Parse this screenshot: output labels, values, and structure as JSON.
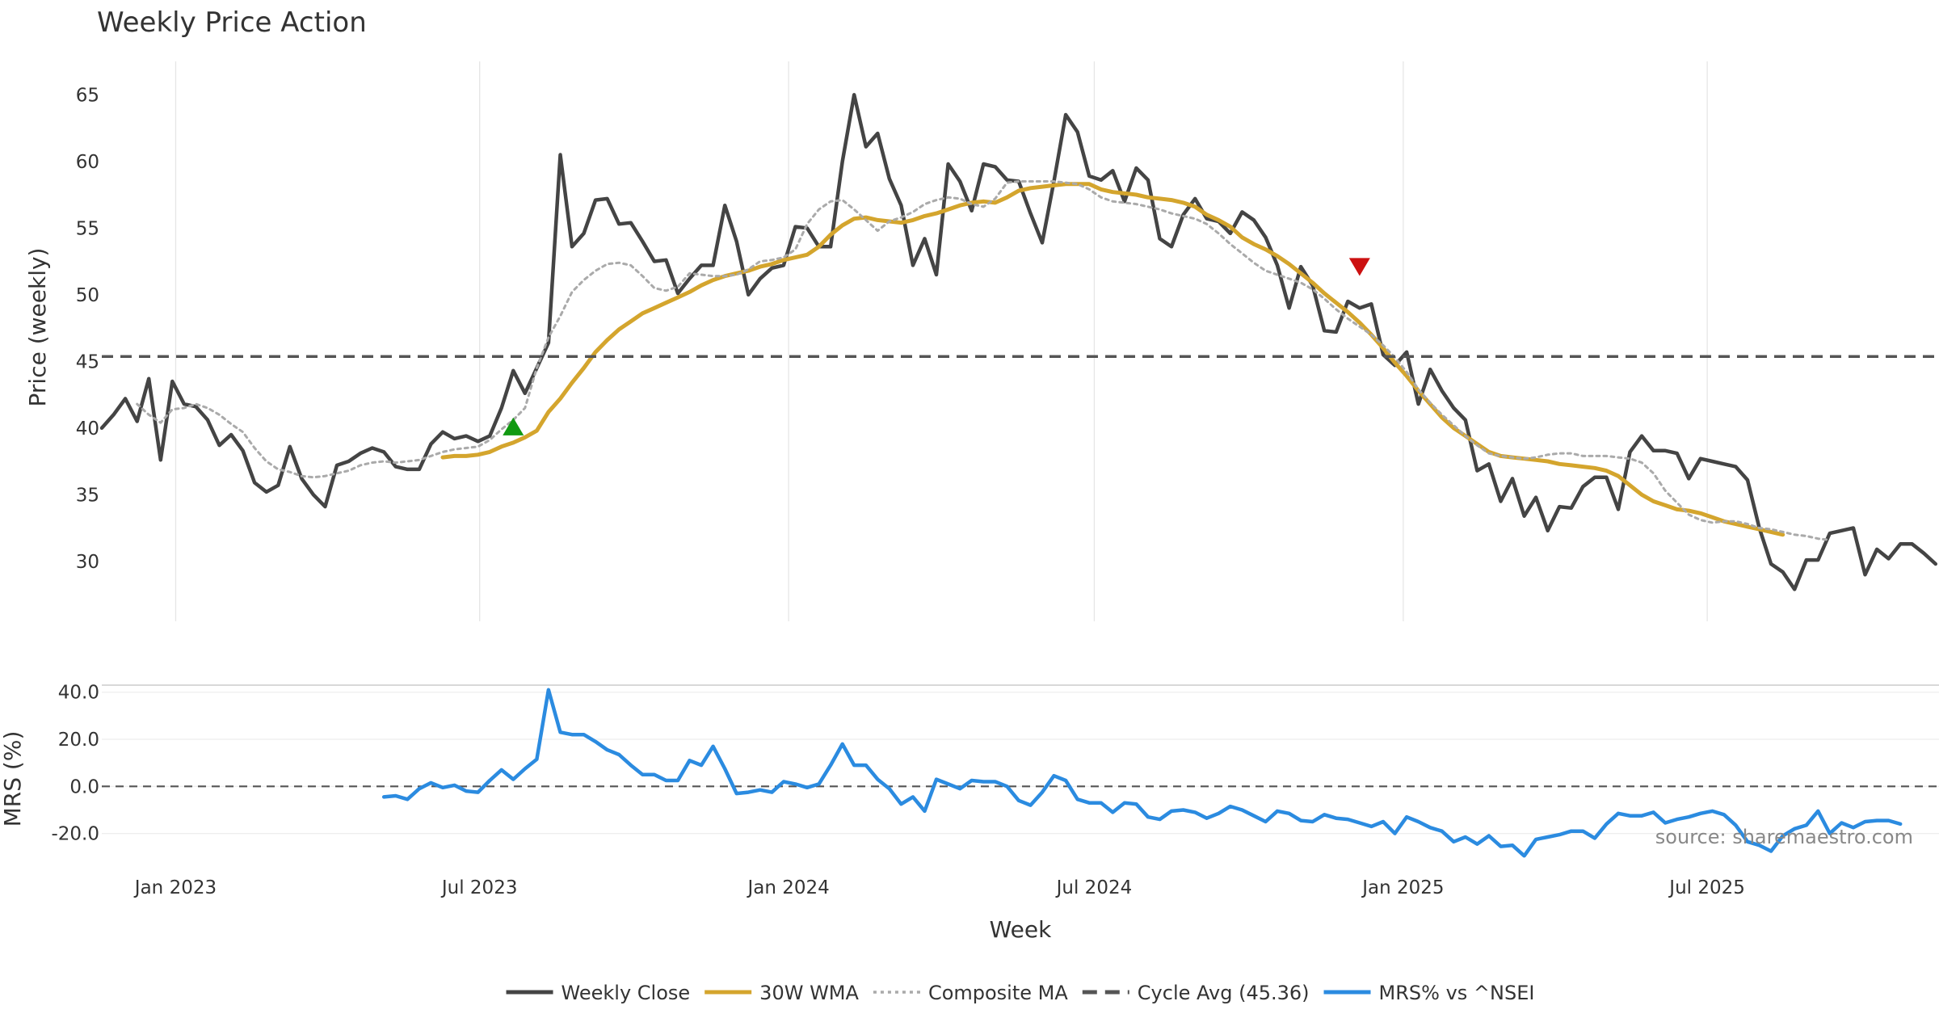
{
  "chart_data": [
    {
      "panel": "price",
      "type": "line",
      "title": "Weekly Price Action",
      "ylabel": "Price (weekly)",
      "ylim": [
        25.5,
        67.5
      ],
      "yticks": [
        30,
        35,
        40,
        45,
        50,
        55,
        60,
        65
      ],
      "x_start": "2022-11-18",
      "x_step_days": 7,
      "grid": "vertical",
      "series": [
        {
          "name": "Weekly Close",
          "color": "#444444",
          "style": "solid",
          "start_index": 0,
          "values": [
            40.0,
            41.0,
            42.2,
            40.5,
            43.7,
            37.6,
            43.5,
            41.8,
            41.6,
            40.6,
            38.7,
            39.5,
            38.3,
            35.9,
            35.2,
            35.7,
            38.6,
            36.2,
            35.0,
            34.1,
            37.2,
            37.5,
            38.1,
            38.5,
            38.2,
            37.1,
            36.9,
            36.9,
            38.8,
            39.7,
            39.2,
            39.4,
            39.0,
            39.4,
            41.5,
            44.3,
            42.6,
            44.5,
            46.4,
            60.5,
            53.6,
            54.6,
            57.1,
            57.2,
            55.3,
            55.4,
            54.0,
            52.5,
            52.6,
            50.1,
            51.2,
            52.2,
            52.2,
            56.7,
            54.0,
            50.0,
            51.2,
            52.0,
            52.2,
            55.1,
            55.0,
            53.6,
            53.6,
            60.0,
            65.0,
            61.1,
            62.1,
            58.7,
            56.7,
            52.2,
            54.2,
            51.5,
            59.8,
            58.5,
            56.3,
            59.8,
            59.6,
            58.6,
            58.5,
            56.1,
            53.9,
            58.5,
            63.5,
            62.2,
            58.9,
            58.6,
            59.3,
            57.0,
            59.5,
            58.6,
            54.2,
            53.6,
            56.0,
            57.2,
            55.7,
            55.5,
            54.6,
            56.2,
            55.6,
            54.3,
            52.2,
            49.0,
            52.1,
            50.7,
            47.3,
            47.2,
            49.5,
            49.0,
            49.3,
            45.5,
            44.7,
            45.7,
            41.8,
            44.4,
            42.8,
            41.5,
            40.6,
            36.8,
            37.3,
            34.5,
            36.2,
            33.4,
            34.8,
            32.3,
            34.1,
            34.0,
            35.6,
            36.3,
            36.3,
            33.9,
            38.2,
            39.4,
            38.3,
            38.3,
            38.1,
            36.2,
            37.7,
            37.5,
            37.3,
            37.1,
            36.1,
            32.5,
            29.8,
            29.2,
            27.9,
            30.1,
            30.1,
            32.1,
            32.3,
            32.5,
            29.0,
            30.9,
            30.2,
            31.3,
            31.3,
            30.6,
            29.8
          ]
        },
        {
          "name": "30W WMA",
          "color": "#d4a52d",
          "style": "solid",
          "start_index": 29,
          "values": [
            37.8,
            37.9,
            37.9,
            38.0,
            38.2,
            38.6,
            38.9,
            39.3,
            39.8,
            41.2,
            42.2,
            43.4,
            44.5,
            45.7,
            46.6,
            47.4,
            48.0,
            48.6,
            49.0,
            49.4,
            49.8,
            50.2,
            50.7,
            51.1,
            51.4,
            51.6,
            51.8,
            52.1,
            52.3,
            52.6,
            52.8,
            53.0,
            53.6,
            54.5,
            55.2,
            55.7,
            55.8,
            55.6,
            55.5,
            55.4,
            55.6,
            55.9,
            56.1,
            56.4,
            56.7,
            56.9,
            57.0,
            56.9,
            57.3,
            57.8,
            58.0,
            58.1,
            58.2,
            58.3,
            58.3,
            58.3,
            57.9,
            57.7,
            57.6,
            57.5,
            57.3,
            57.2,
            57.1,
            56.9,
            56.6,
            56.0,
            55.6,
            55.1,
            54.3,
            53.8,
            53.4,
            52.9,
            52.3,
            51.6,
            50.9,
            50.1,
            49.4,
            48.7,
            47.9,
            47.0,
            46.0,
            44.9,
            43.9,
            42.8,
            41.8,
            40.8,
            40.0,
            39.4,
            38.8,
            38.2,
            37.9,
            37.8,
            37.7,
            37.6,
            37.5,
            37.3,
            37.2,
            37.1,
            37.0,
            36.8,
            36.4,
            35.7,
            35.0,
            34.5,
            34.2,
            33.9,
            33.8,
            33.6,
            33.3,
            33.0,
            32.8,
            32.6,
            32.4,
            32.2,
            32.0
          ]
        },
        {
          "name": "Composite MA",
          "color": "#aaaaaa",
          "style": "dotted",
          "start_index": 3,
          "values": [
            41.8,
            41.0,
            40.4,
            41.4,
            41.5,
            41.8,
            41.5,
            41.0,
            40.3,
            39.7,
            38.5,
            37.5,
            36.9,
            36.7,
            36.4,
            36.3,
            36.4,
            36.6,
            36.8,
            37.2,
            37.4,
            37.5,
            37.4,
            37.5,
            37.6,
            37.9,
            38.2,
            38.4,
            38.5,
            38.6,
            39.1,
            39.9,
            40.6,
            41.5,
            44.5,
            46.8,
            48.4,
            50.2,
            51.1,
            51.8,
            52.3,
            52.4,
            52.2,
            51.4,
            50.5,
            50.3,
            50.6,
            51.6,
            51.5,
            51.4,
            51.4,
            51.5,
            51.9,
            52.5,
            52.6,
            52.8,
            53.4,
            55.3,
            56.4,
            57.0,
            57.1,
            56.4,
            55.6,
            54.8,
            55.5,
            55.8,
            56.2,
            56.8,
            57.1,
            57.3,
            57.2,
            56.8,
            56.6,
            57.2,
            58.4,
            58.5,
            58.5,
            58.5,
            58.5,
            58.4,
            58.3,
            57.9,
            57.3,
            57.0,
            56.9,
            56.8,
            56.6,
            56.4,
            56.1,
            55.9,
            55.7,
            55.3,
            54.6,
            53.8,
            53.1,
            52.4,
            51.8,
            51.5,
            51.2,
            50.9,
            50.4,
            49.7,
            48.9,
            48.2,
            47.6,
            47.0,
            46.2,
            45.3,
            44.2,
            42.9,
            41.9,
            41.0,
            40.2,
            39.4,
            38.7,
            38.1,
            37.9,
            37.8,
            37.7,
            37.8,
            38.0,
            38.1,
            38.1,
            37.9,
            37.9,
            37.9,
            37.8,
            37.7,
            37.4,
            36.6,
            35.3,
            34.4,
            33.5,
            33.1,
            32.9,
            33.0,
            33.0,
            32.8,
            32.5,
            32.4,
            32.2,
            32.0,
            31.9,
            31.7,
            31.6
          ]
        },
        {
          "name": "Cycle Avg (45.36)",
          "color": "#555555",
          "style": "dashed",
          "constant": 45.36
        }
      ],
      "markers": [
        {
          "type": "buy",
          "shape": "triangle-up",
          "color": "#119911",
          "x_index": 35,
          "y": 40.0
        },
        {
          "type": "sell",
          "shape": "triangle-down",
          "color": "#cc1111",
          "x_index": 107,
          "y": 52.2
        }
      ]
    },
    {
      "panel": "mrs",
      "type": "line",
      "ylabel": "MRS (%)",
      "xlabel": "Week",
      "ylim": [
        -27,
        43
      ],
      "yticks": [
        40.0,
        20.0,
        0.0,
        -20.0
      ],
      "ytick_labels": [
        "40.0",
        "20.0",
        "0.0",
        "-20.0"
      ],
      "xticks": [
        "Jan 2023",
        "Jul 2023",
        "Jan 2024",
        "Jul 2024",
        "Jan 2025",
        "Jul 2025"
      ],
      "xtick_dates": [
        "2023-01-01",
        "2023-07-01",
        "2024-01-01",
        "2024-07-01",
        "2025-01-01",
        "2025-07-01"
      ],
      "zero_line": 0.0,
      "series": [
        {
          "name": "MRS% vs ^NSEI",
          "color": "#2b8be0",
          "style": "solid",
          "start_index": 24,
          "values": [
            -4.5,
            -4.0,
            -5.5,
            -1.0,
            1.5,
            -0.5,
            0.5,
            -2.0,
            -2.5,
            2.5,
            7.0,
            3.0,
            7.5,
            11.5,
            41.0,
            23.0,
            22.0,
            22.0,
            19.0,
            15.5,
            13.5,
            9.0,
            5.0,
            5.0,
            2.5,
            2.5,
            11.0,
            9.0,
            17.0,
            7.5,
            -3.0,
            -2.5,
            -1.5,
            -2.5,
            2.0,
            1.0,
            -0.5,
            1.0,
            9.0,
            18.0,
            9.0,
            9.0,
            3.0,
            -1.0,
            -7.5,
            -4.5,
            -10.5,
            3.0,
            1.0,
            -1.0,
            2.5,
            2.0,
            2.0,
            0.0,
            -6.0,
            -8.0,
            -2.5,
            4.5,
            2.5,
            -5.5,
            -7.0,
            -7.0,
            -11.0,
            -7.0,
            -7.5,
            -13.0,
            -14.0,
            -10.5,
            -10.0,
            -11.0,
            -13.5,
            -11.5,
            -8.5,
            -10.0,
            -12.5,
            -15.0,
            -10.5,
            -11.5,
            -14.5,
            -15.0,
            -12.0,
            -13.5,
            -14.0,
            -15.5,
            -17.0,
            -15.0,
            -20.0,
            -13.0,
            -15.0,
            -17.5,
            -19.0,
            -23.5,
            -21.5,
            -24.5,
            -21.0,
            -25.5,
            -25.0,
            -29.5,
            -22.5,
            -21.5,
            -20.5,
            -19.0,
            -19.0,
            -22.0,
            -16.0,
            -11.5,
            -12.5,
            -12.5,
            -11.0,
            -15.5,
            -14.0,
            -13.0,
            -11.5,
            -10.5,
            -12.0,
            -16.5,
            -23.5,
            -25.0,
            -27.5,
            -21.0,
            -18.0,
            -16.5,
            -10.5,
            -20.0,
            -15.5,
            -17.5,
            -15.0,
            -14.5,
            -14.5,
            -16.0
          ]
        }
      ]
    }
  ],
  "legend": {
    "position": "bottom-center",
    "items": [
      {
        "label": "Weekly Close",
        "color": "#444444",
        "style": "solid"
      },
      {
        "label": "30W WMA",
        "color": "#d4a52d",
        "style": "solid"
      },
      {
        "label": "Composite MA",
        "color": "#aaaaaa",
        "style": "dotted"
      },
      {
        "label": "Cycle Avg (45.36)",
        "color": "#555555",
        "style": "dashed"
      },
      {
        "label": "MRS% vs ^NSEI",
        "color": "#2b8be0",
        "style": "solid"
      }
    ]
  },
  "source": "source: sharemaestro.com"
}
